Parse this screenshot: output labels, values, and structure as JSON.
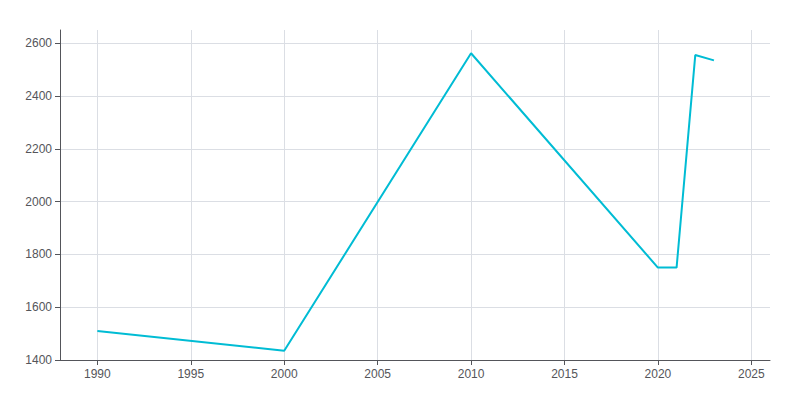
{
  "chart_data": {
    "type": "line",
    "x": [
      1990,
      2000,
      2010,
      2020,
      2021,
      2022,
      2023
    ],
    "values": [
      1510,
      1435,
      2562,
      1750,
      1750,
      2555,
      2535
    ],
    "color": "#00bcd4",
    "xlim": [
      1988,
      2026
    ],
    "ylim": [
      1400,
      2650
    ],
    "xticks": [
      1990,
      1995,
      2000,
      2005,
      2010,
      2015,
      2020,
      2025
    ],
    "yticks": [
      1400,
      1600,
      1800,
      2000,
      2200,
      2400,
      2600
    ],
    "grid": true
  }
}
